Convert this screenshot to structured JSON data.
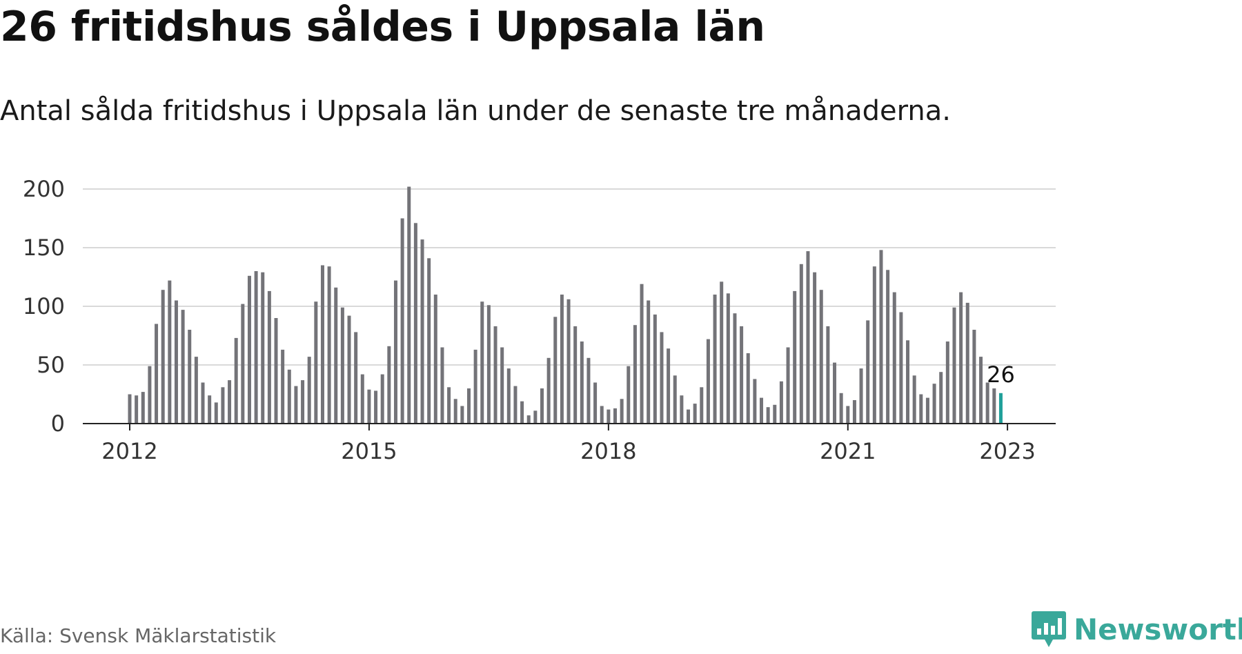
{
  "title": "26 fritidshus såldes i Uppsala län",
  "subtitle": "Antal sålda fritidshus i Uppsala län under de senaste tre månaderna.",
  "source": "Källa: Svensk Mäklarstatistik",
  "brand": {
    "name": "Newsworthy",
    "icon": "newsworthy-logo-icon",
    "color": "#3aa89a"
  },
  "chart_data": {
    "type": "bar",
    "x_start": "2012-01",
    "x_tick_labels": [
      "2012",
      "2015",
      "2018",
      "2021",
      "2023"
    ],
    "x_tick_positions": [
      "2012-01",
      "2015-01",
      "2018-01",
      "2021-01",
      "2023-01"
    ],
    "y_ticks": [
      0,
      50,
      100,
      150,
      200
    ],
    "ylim": [
      0,
      200
    ],
    "grid": true,
    "bar_color": "#737378",
    "highlight_color": "#20a09a",
    "highlight_label": "26",
    "values": [
      25,
      24,
      27,
      49,
      85,
      114,
      122,
      105,
      97,
      80,
      57,
      35,
      24,
      18,
      31,
      37,
      73,
      102,
      126,
      130,
      129,
      113,
      90,
      63,
      46,
      32,
      37,
      57,
      104,
      135,
      134,
      116,
      99,
      92,
      78,
      42,
      29,
      28,
      42,
      66,
      122,
      175,
      202,
      171,
      157,
      141,
      110,
      65,
      31,
      21,
      15,
      30,
      63,
      104,
      101,
      83,
      65,
      47,
      32,
      19,
      7,
      11,
      30,
      56,
      91,
      110,
      106,
      83,
      70,
      56,
      35,
      15,
      12,
      13,
      21,
      49,
      84,
      119,
      105,
      93,
      78,
      64,
      41,
      24,
      12,
      17,
      31,
      72,
      110,
      121,
      111,
      94,
      83,
      60,
      38,
      22,
      14,
      16,
      36,
      65,
      113,
      136,
      147,
      129,
      114,
      83,
      52,
      26,
      15,
      20,
      47,
      88,
      134,
      148,
      131,
      112,
      95,
      71,
      41,
      25,
      22,
      34,
      44,
      70,
      99,
      112,
      103,
      80,
      57,
      35,
      30,
      26
    ]
  }
}
